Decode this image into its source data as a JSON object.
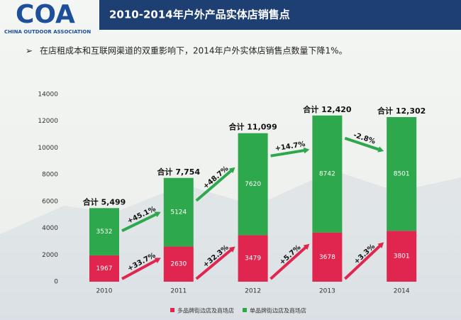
{
  "header": {
    "logo": "COA",
    "logo_caption": "CHINA OUTDOOR ASSOCIATION",
    "title": "2010-2014年户外产品实体店销售点",
    "subtitle": "在店租成本和互联网渠道的双重影响下，2014年户外实体店销售点数量下降1%。"
  },
  "chart_data": {
    "type": "stacked_bar",
    "categories": [
      "2010",
      "2011",
      "2012",
      "2013",
      "2014"
    ],
    "series": [
      {
        "name": "多品牌街边店及商场店",
        "color": "#e0264f",
        "values": [
          1967,
          2630,
          3479,
          3678,
          3801
        ]
      },
      {
        "name": "单品牌街边店及商场店",
        "color": "#2ea84c",
        "values": [
          3532,
          5124,
          7620,
          8742,
          8501
        ]
      }
    ],
    "total_labels": [
      "合计 5,499",
      "合计 7,754",
      "合计 11,099",
      "合计 12,420",
      "合计 12,302"
    ],
    "growth_labels": [
      [
        "+33.7%",
        "+32.3%",
        "+5.7%",
        "+3.3%"
      ],
      [
        "+45.1%",
        "+48.7%",
        "+14.7%",
        "-2.8%"
      ]
    ],
    "ylim": [
      0,
      14000
    ],
    "yticks": [
      0,
      2000,
      4000,
      6000,
      8000,
      10000,
      12000,
      14000
    ],
    "grid": false,
    "legend": "bottom"
  }
}
